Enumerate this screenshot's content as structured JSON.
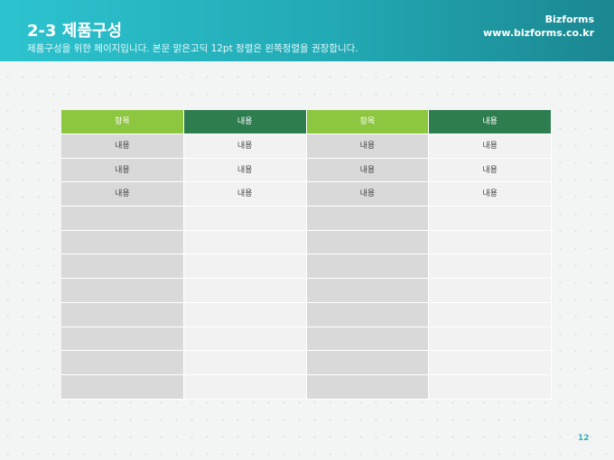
{
  "header": {
    "title": "2-3 제품구성",
    "subtitle": "제품구성을 위한 페이지입니다. 본문 맑은고딕 12pt 정렬은 왼쪽정렬을 권장합니다.",
    "brand": "Bizforms",
    "url": "www.bizforms.co.kr"
  },
  "table": {
    "header": [
      "항목",
      "내용",
      "항목",
      "내용"
    ],
    "rows": [
      [
        "내용",
        "내용",
        "내용",
        "내용"
      ],
      [
        "내용",
        "내용",
        "내용",
        "내용"
      ],
      [
        "내용",
        "내용",
        "내용",
        "내용"
      ]
    ]
  },
  "page_number": "12"
}
